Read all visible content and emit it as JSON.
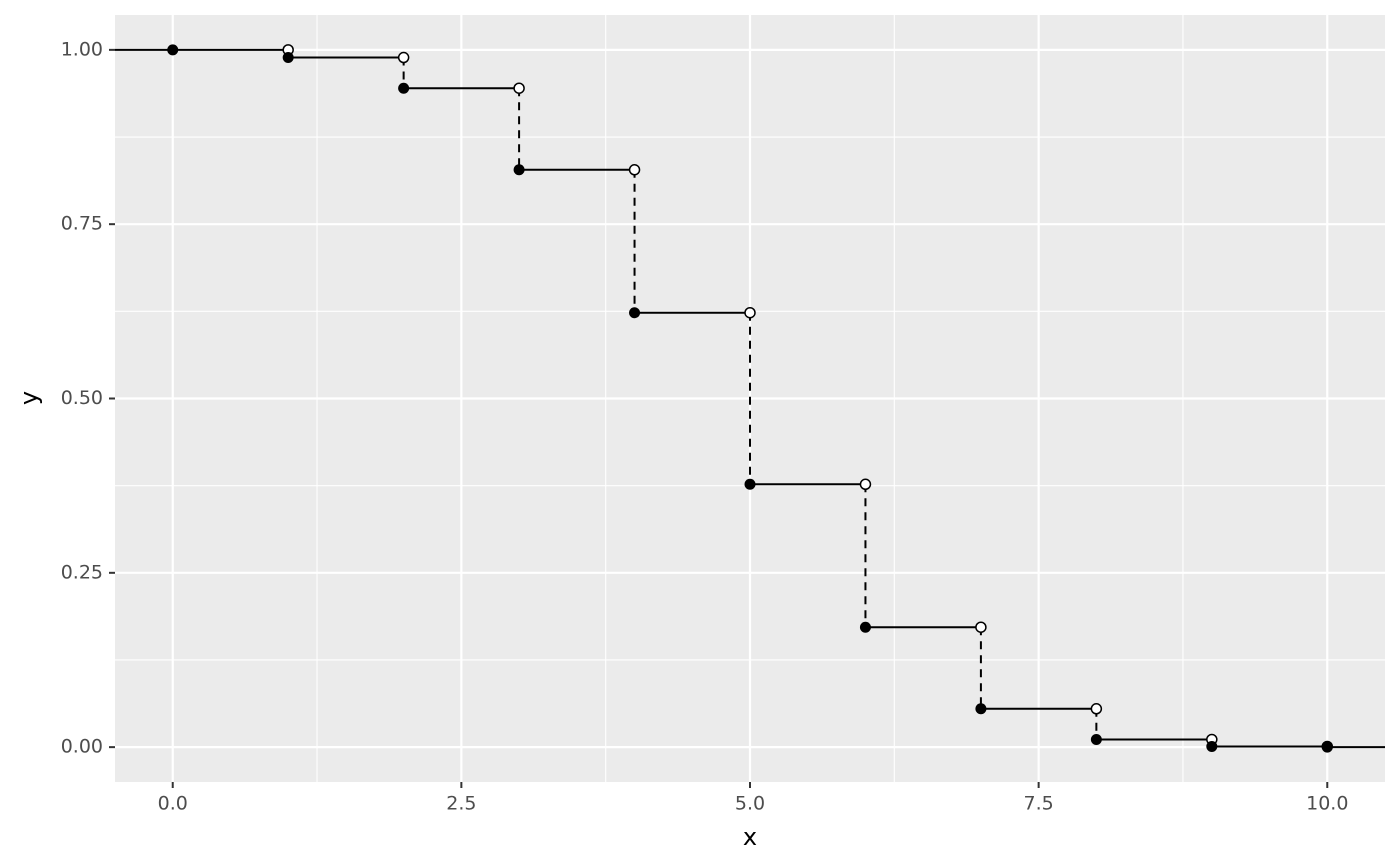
{
  "chart_data": {
    "type": "step",
    "x_label": "x",
    "y_label": "y",
    "x": [
      0,
      1,
      2,
      3,
      4,
      5,
      6,
      7,
      8,
      9,
      10
    ],
    "values": [
      1.0,
      0.989,
      0.945,
      0.828,
      0.623,
      0.377,
      0.172,
      0.055,
      0.011,
      0.001,
      0.0
    ],
    "color": "#000000",
    "xlim": [
      -0.5,
      10.5
    ],
    "ylim": [
      -0.05,
      1.05
    ],
    "xticks": [
      {
        "value": 0,
        "label": "0.0"
      },
      2.5,
      {
        "value": 5,
        "label": "5.0"
      },
      7.5,
      {
        "value": 10,
        "label": "10.0"
      }
    ],
    "yticks": [
      {
        "value": 0,
        "label": "0.00"
      },
      0.25,
      {
        "value": 0.5,
        "label": "0.50"
      },
      0.75,
      {
        "value": 1,
        "label": "1.00"
      }
    ],
    "grid": true,
    "minor_grid": true
  }
}
